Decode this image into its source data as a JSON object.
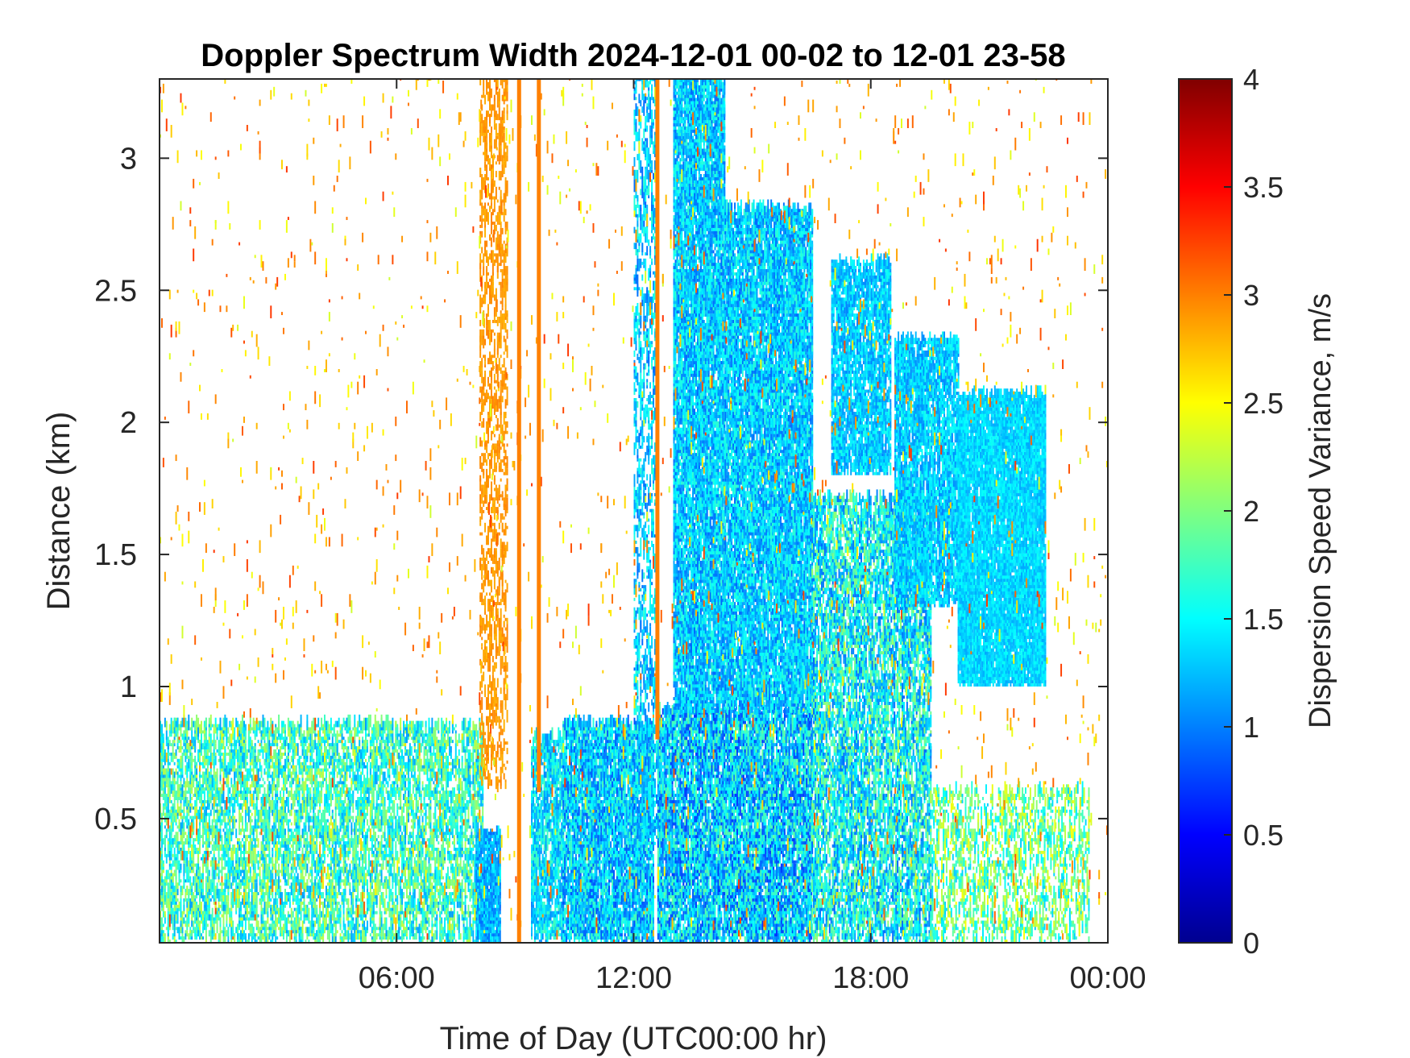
{
  "chart_data": {
    "type": "heatmap",
    "title": "Doppler Spectrum Width 2024-12-01 00-02 to 12-01 23-58",
    "xlabel": "Time of Day (UTC00:00 hr)",
    "ylabel": "Distance (km)",
    "xlim": [
      0,
      24
    ],
    "ylim": [
      0.03,
      3.3
    ],
    "x_ticks": [
      6,
      12,
      18,
      24
    ],
    "x_tick_labels": [
      "06:00",
      "12:00",
      "18:00",
      "00:00"
    ],
    "y_ticks": [
      0.5,
      1,
      1.5,
      2,
      2.5,
      3
    ],
    "y_tick_labels": [
      "0.5",
      "1",
      "1.5",
      "2",
      "2.5",
      "3"
    ],
    "colorbar": {
      "label": "Dispersion Speed Variance, m/s",
      "range": [
        0,
        4
      ],
      "ticks": [
        0,
        0.5,
        1,
        1.5,
        2,
        2.5,
        3,
        3.5,
        4
      ],
      "tick_labels": [
        "0",
        "0.5",
        "1",
        "1.5",
        "2",
        "2.5",
        "3",
        "3.5",
        "4"
      ],
      "colormap": "jet"
    },
    "regions": [
      {
        "x": [
          0.0,
          8.2
        ],
        "y": [
          0.03,
          0.85
        ],
        "value": 1.7,
        "spread": 0.6,
        "density": 0.45
      },
      {
        "x": [
          8.0,
          8.6
        ],
        "y": [
          0.03,
          0.45
        ],
        "value": 1.2,
        "spread": 0.3,
        "density": 0.8
      },
      {
        "x": [
          8.1,
          8.8
        ],
        "y": [
          0.6,
          3.3
        ],
        "value": 2.9,
        "spread": 0.1,
        "density": 0.28
      },
      {
        "x": [
          9.4,
          10.2
        ],
        "y": [
          0.03,
          0.8
        ],
        "value": 1.4,
        "spread": 0.4,
        "density": 0.6
      },
      {
        "x": [
          10.2,
          12.5
        ],
        "y": [
          0.03,
          0.85
        ],
        "value": 1.3,
        "spread": 0.5,
        "density": 0.75
      },
      {
        "x": [
          12.0,
          12.6
        ],
        "y": [
          0.4,
          3.3
        ],
        "value": 1.3,
        "spread": 0.4,
        "density": 0.3
      },
      {
        "x": [
          12.6,
          16.5
        ],
        "y": [
          0.03,
          0.9
        ],
        "value": 1.3,
        "spread": 0.6,
        "density": 0.75
      },
      {
        "x": [
          13.0,
          14.3
        ],
        "y": [
          0.9,
          3.3
        ],
        "value": 1.3,
        "spread": 0.4,
        "density": 0.75
      },
      {
        "x": [
          14.3,
          16.5
        ],
        "y": [
          0.9,
          2.8
        ],
        "value": 1.3,
        "spread": 0.4,
        "density": 0.75
      },
      {
        "x": [
          16.5,
          19.5
        ],
        "y": [
          0.03,
          1.7
        ],
        "value": 1.5,
        "spread": 0.6,
        "density": 0.55
      },
      {
        "x": [
          17.0,
          18.5
        ],
        "y": [
          1.8,
          2.6
        ],
        "value": 1.3,
        "spread": 0.3,
        "density": 0.7
      },
      {
        "x": [
          18.6,
          20.2
        ],
        "y": [
          1.3,
          2.3
        ],
        "value": 1.3,
        "spread": 0.3,
        "density": 0.7
      },
      {
        "x": [
          19.5,
          23.5
        ],
        "y": [
          0.03,
          0.6
        ],
        "value": 1.9,
        "spread": 0.6,
        "density": 0.3
      },
      {
        "x": [
          20.2,
          22.4
        ],
        "y": [
          1.0,
          2.1
        ],
        "value": 1.35,
        "spread": 0.2,
        "density": 0.85
      },
      {
        "x": [
          0.0,
          24.0
        ],
        "y": [
          0.03,
          3.3
        ],
        "value": 2.8,
        "spread": 0.5,
        "density": 0.012
      }
    ],
    "vertical_lines": [
      {
        "x": 9.1,
        "y": [
          0.03,
          3.3
        ],
        "value": 3.0
      },
      {
        "x": 9.6,
        "y": [
          0.6,
          3.3
        ],
        "value": 3.0
      },
      {
        "x": 12.6,
        "y": [
          0.8,
          3.3
        ],
        "value": 3.0
      }
    ]
  }
}
